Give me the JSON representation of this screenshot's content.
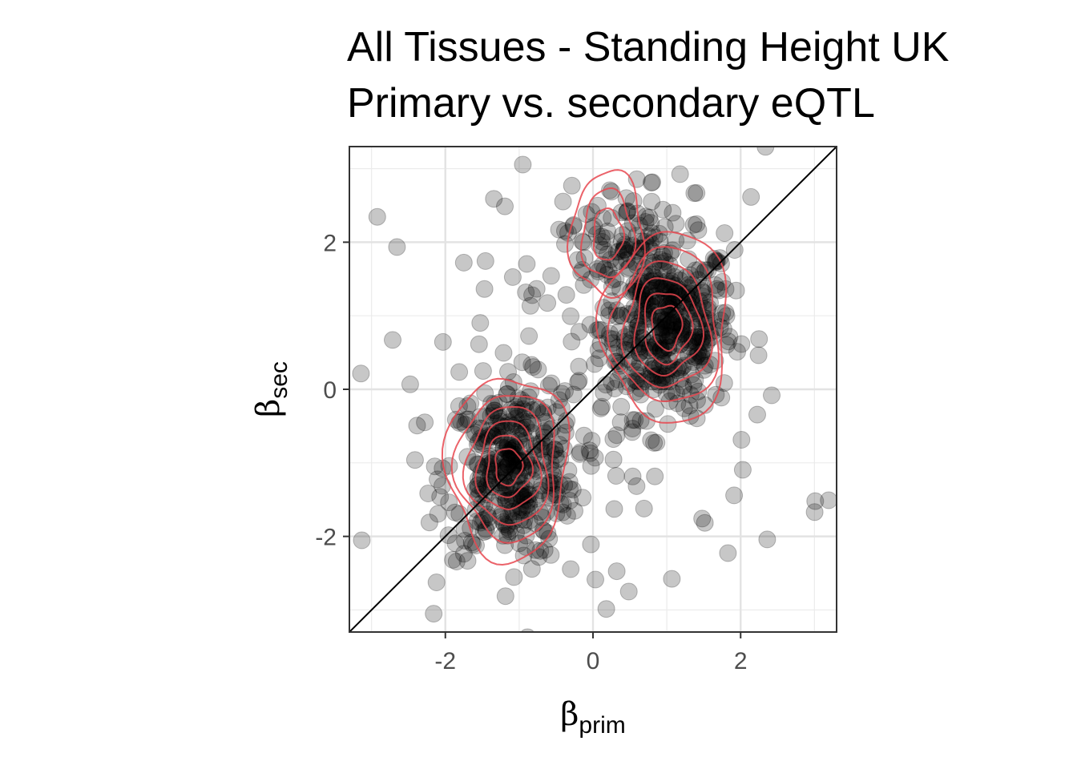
{
  "chart_data": {
    "type": "scatter",
    "title": "All Tissues - Standing Height UK",
    "subtitle": "Primary vs. secondary eQTL",
    "xlabel": {
      "symbol": "β",
      "subscript": "prim"
    },
    "ylabel": {
      "symbol": "β",
      "subscript": "sec"
    },
    "xlim": [
      -3.3,
      3.3
    ],
    "ylim": [
      -3.3,
      3.3
    ],
    "x_ticks": [
      -2,
      0,
      2
    ],
    "y_ticks": [
      -2,
      0,
      2
    ],
    "x_tick_labels": [
      "-2",
      "0",
      "2"
    ],
    "y_tick_labels": [
      "-2",
      "0",
      "2"
    ],
    "reference_line": {
      "type": "identity",
      "slope": 1,
      "intercept": 0
    },
    "grid": true,
    "point_color": "#000000",
    "point_opacity": 0.22,
    "contour_color": "#e8474f",
    "clusters": [
      {
        "name": "upper-right",
        "center": [
          1.0,
          0.85
        ],
        "spread": [
          0.45,
          0.6
        ],
        "approx_n": 420
      },
      {
        "name": "lower-left",
        "center": [
          -1.1,
          -1.1
        ],
        "spread": [
          0.45,
          0.6
        ],
        "approx_n": 360
      },
      {
        "name": "upper-arm",
        "center": [
          0.3,
          2.0
        ],
        "spread": [
          0.35,
          0.4
        ],
        "approx_n": 80
      },
      {
        "name": "scatter",
        "center": [
          0.0,
          0.0
        ],
        "spread": [
          1.4,
          1.6
        ],
        "approx_n": 120
      }
    ],
    "density_contours": [
      {
        "center": [
          1.0,
          0.85
        ],
        "levels": [
          [
            0.2,
            0.3
          ],
          [
            0.32,
            0.48
          ],
          [
            0.45,
            0.65
          ],
          [
            0.58,
            0.85
          ],
          [
            0.72,
            1.05
          ],
          [
            0.85,
            1.3
          ]
        ]
      },
      {
        "center": [
          -1.15,
          -1.05
        ],
        "levels": [
          [
            0.18,
            0.25
          ],
          [
            0.3,
            0.42
          ],
          [
            0.42,
            0.6
          ],
          [
            0.55,
            0.8
          ],
          [
            0.68,
            1.0
          ],
          [
            0.82,
            1.25
          ]
        ]
      },
      {
        "center": [
          0.2,
          2.1
        ],
        "levels": [
          [
            0.2,
            0.35
          ],
          [
            0.35,
            0.6
          ],
          [
            0.5,
            0.85
          ]
        ]
      }
    ]
  }
}
